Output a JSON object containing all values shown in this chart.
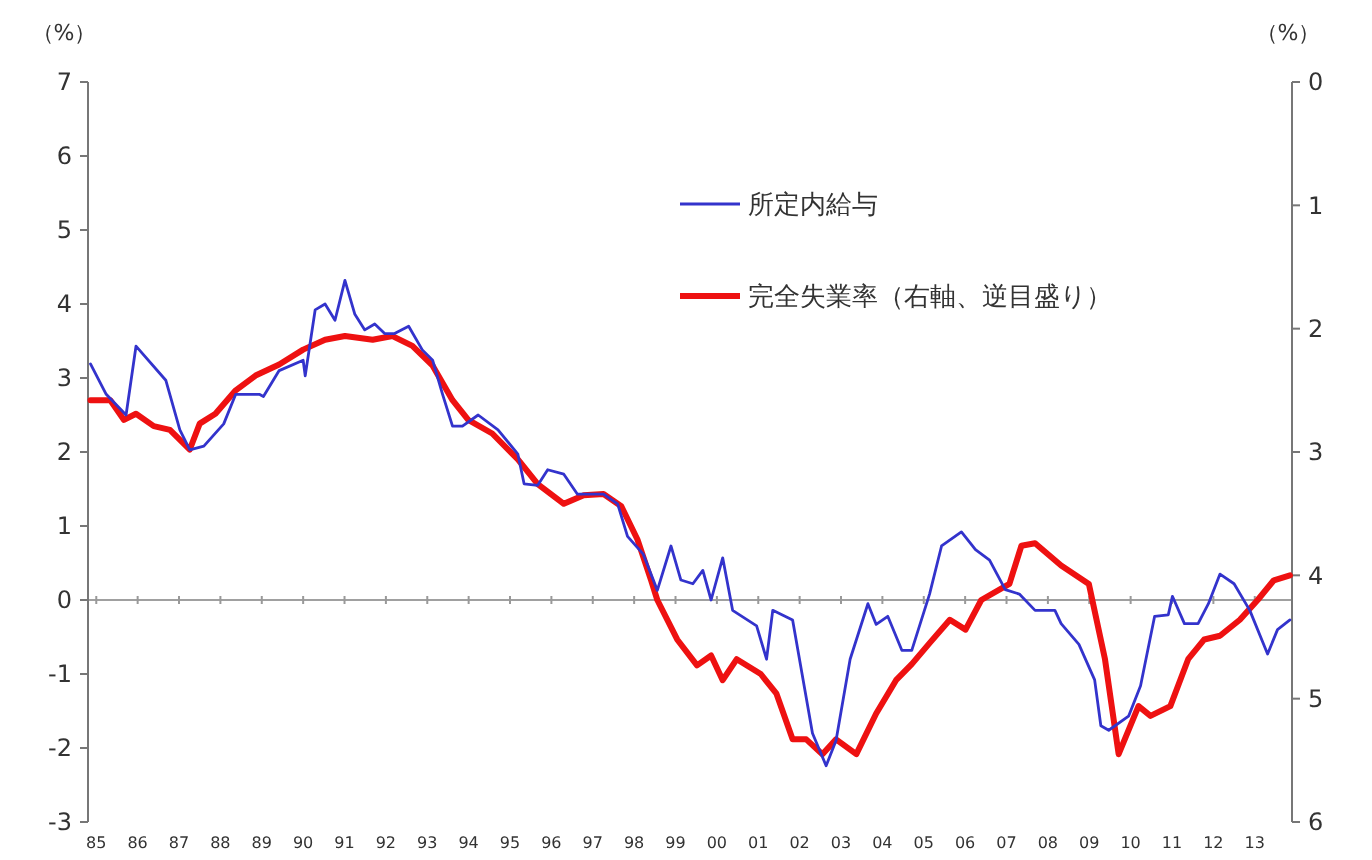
{
  "chart_data": {
    "type": "line",
    "ylabel": "（%）",
    "y2label": "（%）",
    "xlim": [
      1984.8,
      2013.9
    ],
    "xticks": [
      {
        "value": 1985,
        "label": "85"
      },
      {
        "value": 1986,
        "label": "86"
      },
      {
        "value": 1987,
        "label": "87"
      },
      {
        "value": 1988,
        "label": "88"
      },
      {
        "value": 1989,
        "label": "89"
      },
      {
        "value": 1990,
        "label": "90"
      },
      {
        "value": 1991,
        "label": "91"
      },
      {
        "value": 1992,
        "label": "92"
      },
      {
        "value": 1993,
        "label": "93"
      },
      {
        "value": 1994,
        "label": "94"
      },
      {
        "value": 1995,
        "label": "95"
      },
      {
        "value": 1996,
        "label": "96"
      },
      {
        "value": 1997,
        "label": "97"
      },
      {
        "value": 1998,
        "label": "98"
      },
      {
        "value": 1999,
        "label": "99"
      },
      {
        "value": 2000,
        "label": "00"
      },
      {
        "value": 2001,
        "label": "01"
      },
      {
        "value": 2002,
        "label": "02"
      },
      {
        "value": 2003,
        "label": "03"
      },
      {
        "value": 2004,
        "label": "04"
      },
      {
        "value": 2005,
        "label": "05"
      },
      {
        "value": 2006,
        "label": "06"
      },
      {
        "value": 2007,
        "label": "07"
      },
      {
        "value": 2008,
        "label": "08"
      },
      {
        "value": 2009,
        "label": "09"
      },
      {
        "value": 2010,
        "label": "10"
      },
      {
        "value": 2011,
        "label": "11"
      },
      {
        "value": 2012,
        "label": "12"
      },
      {
        "value": 2013,
        "label": "13"
      }
    ],
    "ylim": [
      -3,
      7
    ],
    "yticks": [
      -3,
      -2,
      -1,
      0,
      1,
      2,
      3,
      4,
      5,
      6,
      7
    ],
    "y2lim": [
      6,
      0
    ],
    "y2ticks": [
      0,
      1,
      2,
      3,
      4,
      5,
      6
    ],
    "grid": false,
    "legend": "top right",
    "line_style": "solid",
    "marker": "none",
    "ref_lines": [
      {
        "axis": "y",
        "value": 0,
        "color": "#a0a0a0"
      }
    ],
    "series": [
      {
        "name": "所定内給与",
        "color": "#3333cc",
        "x": [
          1984.86,
          1985.24,
          1985.72,
          1985.96,
          1986.68,
          1987.02,
          1987.26,
          1987.6,
          1988.08,
          1988.37,
          1988.94,
          1989.04,
          1989.42,
          1990.0,
          1990.05,
          1990.29,
          1990.53,
          1990.77,
          1991.01,
          1991.25,
          1991.49,
          1991.73,
          1991.97,
          1992.21,
          1992.55,
          1992.88,
          1993.13,
          1993.37,
          1993.61,
          1993.85,
          1994.23,
          1994.71,
          1995.19,
          1995.34,
          1995.67,
          1995.91,
          1996.3,
          1996.63,
          1996.97,
          1997.26,
          1997.6,
          1997.84,
          1998.22,
          1998.56,
          1998.89,
          1999.13,
          1999.42,
          1999.66,
          1999.86,
          2000.14,
          2000.38,
          2000.96,
          2001.2,
          2001.35,
          2001.83,
          2002.31,
          2002.64,
          2002.88,
          2003.22,
          2003.65,
          2003.85,
          2004.13,
          2004.47,
          2004.71,
          2005.14,
          2005.43,
          2005.91,
          2006.25,
          2006.59,
          2006.97,
          2007.31,
          2007.69,
          2008.17,
          2008.32,
          2008.75,
          2009.13,
          2009.28,
          2009.47,
          2009.95,
          2010.24,
          2010.58,
          2010.91,
          2011.01,
          2011.3,
          2011.63,
          2011.88,
          2012.16,
          2012.5,
          2012.88,
          2013.31,
          2013.55,
          2013.85
        ],
        "values": [
          3.19,
          2.78,
          2.5,
          3.43,
          2.97,
          2.3,
          2.03,
          2.08,
          2.38,
          2.78,
          2.78,
          2.75,
          3.1,
          3.24,
          3.03,
          3.92,
          4.0,
          3.78,
          4.32,
          3.86,
          3.65,
          3.73,
          3.6,
          3.6,
          3.7,
          3.38,
          3.24,
          2.78,
          2.35,
          2.35,
          2.5,
          2.3,
          1.97,
          1.57,
          1.55,
          1.76,
          1.7,
          1.43,
          1.43,
          1.43,
          1.3,
          0.86,
          0.62,
          0.13,
          0.73,
          0.27,
          0.22,
          0.4,
          0.0,
          0.57,
          -0.14,
          -0.35,
          -0.8,
          -0.14,
          -0.27,
          -1.8,
          -2.24,
          -1.9,
          -0.8,
          -0.05,
          -0.33,
          -0.22,
          -0.68,
          -0.68,
          0.08,
          0.73,
          0.92,
          0.68,
          0.54,
          0.14,
          0.08,
          -0.14,
          -0.14,
          -0.32,
          -0.6,
          -1.08,
          -1.7,
          -1.76,
          -1.57,
          -1.16,
          -0.22,
          -0.2,
          0.05,
          -0.32,
          -0.32,
          -0.05,
          0.35,
          0.22,
          -0.14,
          -0.73,
          -0.4,
          -0.27
        ]
      },
      {
        "name": "完全失業率（右軸、逆目盛り）",
        "color": "#ee1111",
        "axis": "y2",
        "x": [
          1984.86,
          1985.34,
          1985.67,
          1985.96,
          1986.39,
          1986.78,
          1987.26,
          1987.5,
          1987.88,
          1988.37,
          1988.85,
          1989.42,
          1990.0,
          1990.53,
          1991.01,
          1991.68,
          1992.16,
          1992.64,
          1993.13,
          1993.61,
          1993.99,
          1994.57,
          1995.19,
          1995.67,
          1996.3,
          1996.78,
          1997.26,
          1997.69,
          1998.08,
          1998.41,
          1998.56,
          1999.04,
          1999.52,
          1999.86,
          2000.14,
          2000.48,
          2001.06,
          2001.44,
          2001.83,
          2002.16,
          2002.55,
          2002.88,
          2003.37,
          2003.85,
          2004.33,
          2004.71,
          2005.14,
          2005.63,
          2006.01,
          2006.39,
          2007.07,
          2007.36,
          2007.69,
          2008.32,
          2008.99,
          2009.38,
          2009.71,
          2010.19,
          2010.48,
          2010.96,
          2011.39,
          2011.78,
          2012.16,
          2012.64,
          2013.07,
          2013.46,
          2013.85
        ],
        "values": [
          2.58,
          2.58,
          2.74,
          2.69,
          2.79,
          2.82,
          2.98,
          2.77,
          2.69,
          2.5,
          2.38,
          2.29,
          2.17,
          2.09,
          2.06,
          2.09,
          2.06,
          2.14,
          2.3,
          2.58,
          2.74,
          2.85,
          3.06,
          3.26,
          3.42,
          3.35,
          3.34,
          3.44,
          3.71,
          4.04,
          4.2,
          4.52,
          4.73,
          4.65,
          4.85,
          4.68,
          4.8,
          4.96,
          5.33,
          5.33,
          5.45,
          5.33,
          5.45,
          5.12,
          4.85,
          4.72,
          4.55,
          4.36,
          4.44,
          4.2,
          4.07,
          3.76,
          3.74,
          3.92,
          4.07,
          4.68,
          5.45,
          5.06,
          5.14,
          5.06,
          4.68,
          4.52,
          4.49,
          4.36,
          4.2,
          4.04,
          4.0
        ]
      }
    ]
  }
}
